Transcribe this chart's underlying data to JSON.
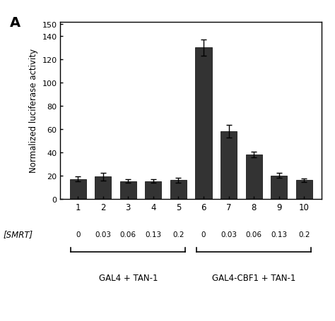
{
  "bar_values": [
    17,
    19,
    15,
    15,
    16,
    130,
    58,
    38,
    20,
    16
  ],
  "bar_errors": [
    2.0,
    3.5,
    1.5,
    1.5,
    2.0,
    7.0,
    5.5,
    2.5,
    2.0,
    1.5
  ],
  "bar_positions": [
    1,
    2,
    3,
    4,
    5,
    6,
    7,
    8,
    9,
    10
  ],
  "bar_color": "#333333",
  "bar_width": 0.65,
  "ylim": [
    0,
    152
  ],
  "yticks": [
    0,
    20,
    40,
    60,
    80,
    100,
    120,
    140
  ],
  "ytick_labels": [
    "0",
    "20",
    "40",
    "60",
    "80",
    "100",
    "120",
    "140"
  ],
  "ylabel": "Normalized luciferase activity",
  "xtick_labels": [
    "1",
    "2",
    "3",
    "4",
    "5",
    "6",
    "7",
    "8",
    "9",
    "10"
  ],
  "smrt_label": "[SMRT]",
  "smrt_values_group1": [
    "0",
    "0.03",
    "0.06",
    "0.13",
    "0.2"
  ],
  "smrt_values_group2": [
    "0",
    "0.03",
    "0.06",
    "0.13",
    "0.2"
  ],
  "group1_label": "GAL4 + TAN-1",
  "group2_label": "GAL4-CBF1 + TAN-1",
  "group1_positions": [
    1,
    2,
    3,
    4,
    5
  ],
  "group2_positions": [
    6,
    7,
    8,
    9,
    10
  ],
  "panel_label": "A",
  "background_color": "#ffffff"
}
